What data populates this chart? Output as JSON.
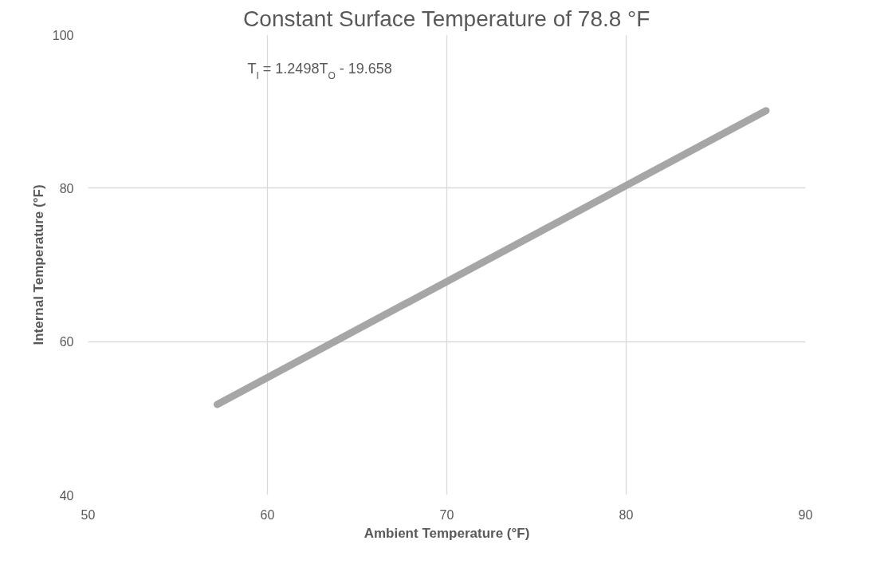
{
  "chart_data": {
    "type": "line",
    "title": "Constant Surface Temperature of 78.8 °F",
    "xlabel": "Ambient Temperature (°F)",
    "ylabel": "Internal Temperature (°F)",
    "x": [
      57.2,
      87.8
    ],
    "series": [
      {
        "color": "#a6a6a6",
        "values": [
          51.8,
          90.1
        ]
      }
    ],
    "xlim": [
      50,
      90
    ],
    "xticks": [
      50,
      60,
      70,
      80,
      90
    ],
    "ylim": [
      40,
      100
    ],
    "yticks": [
      40,
      60,
      80,
      100
    ],
    "grid": true,
    "marker": "none",
    "line_style": "solid",
    "annotations": [
      "T$_{I}$ = 1.2498T$_{O}$ - 19.658"
    ]
  }
}
